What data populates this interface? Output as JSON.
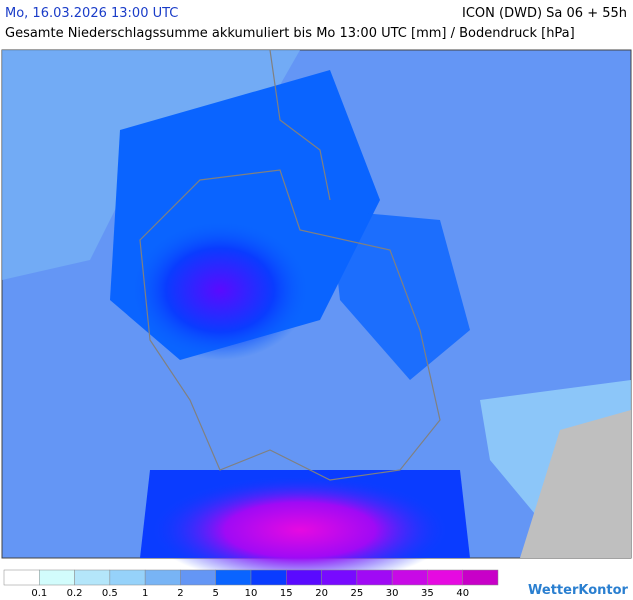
{
  "header": {
    "date": "Mo, 16.03.2026 13:00 UTC",
    "model": "ICON (DWD) Sa 06 + 55h",
    "subtitle": "Gesamte Niederschlagssumme akkumuliert bis Mo 13:00 UTC [mm] / Bodendruck [hPa]"
  },
  "legend": {
    "colors": [
      "#ffffff",
      "#d2fcfc",
      "#b4e6fa",
      "#96d2fa",
      "#78b4f5",
      "#6496f5",
      "#0a64ff",
      "#0a3cff",
      "#5a0aff",
      "#780aff",
      "#a00af5",
      "#c80ae6",
      "#e60ae1",
      "#c800c8"
    ],
    "labels": [
      "0.1",
      "0.2",
      "0.5",
      "1",
      "2",
      "5",
      "10",
      "15",
      "20",
      "25",
      "30",
      "35",
      "40"
    ]
  },
  "logo": "WetterKontor"
}
